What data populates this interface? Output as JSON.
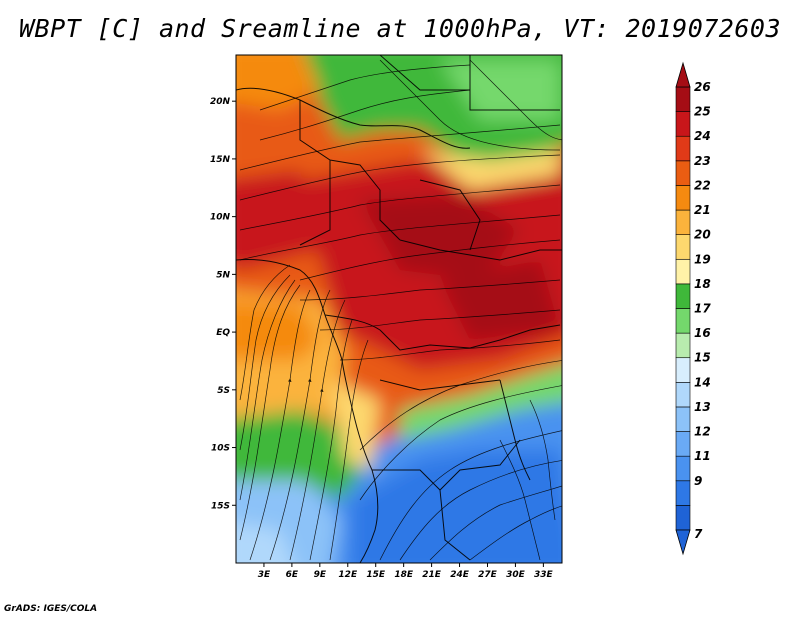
{
  "title": "WBPT [C] and Sreamline at 1000hPa, VT: 2019072603",
  "credit": "GrADS: IGES/COLA",
  "map": {
    "lon_range": [
      0,
      35
    ],
    "lat_range": [
      -20,
      24
    ],
    "lat_ticks": [
      {
        "value": 20,
        "label": "20N"
      },
      {
        "value": 15,
        "label": "15N"
      },
      {
        "value": 10,
        "label": "10N"
      },
      {
        "value": 5,
        "label": "5N"
      },
      {
        "value": 0,
        "label": "EQ"
      },
      {
        "value": -5,
        "label": "5S"
      },
      {
        "value": -10,
        "label": "10S"
      },
      {
        "value": -15,
        "label": "15S"
      }
    ],
    "lon_ticks": [
      {
        "value": 3,
        "label": "3E"
      },
      {
        "value": 6,
        "label": "6E"
      },
      {
        "value": 9,
        "label": "9E"
      },
      {
        "value": 12,
        "label": "12E"
      },
      {
        "value": 15,
        "label": "15E"
      },
      {
        "value": 18,
        "label": "18E"
      },
      {
        "value": 21,
        "label": "21E"
      },
      {
        "value": 24,
        "label": "24E"
      },
      {
        "value": 27,
        "label": "27E"
      },
      {
        "value": 30,
        "label": "30E"
      },
      {
        "value": 33,
        "label": "33E"
      }
    ]
  },
  "colorbar": {
    "levels": [
      {
        "label": "7",
        "color": "#1f63d6"
      },
      {
        "label": "9",
        "color": "#2e78e6"
      },
      {
        "label": "11",
        "color": "#4a92f0"
      },
      {
        "label": "12",
        "color": "#6aaaf5"
      },
      {
        "label": "13",
        "color": "#8cc2f8"
      },
      {
        "label": "14",
        "color": "#b0d8fb"
      },
      {
        "label": "15",
        "color": "#d8eefd"
      },
      {
        "label": "16",
        "color": "#b8ecae"
      },
      {
        "label": "17",
        "color": "#74d86c"
      },
      {
        "label": "18",
        "color": "#3fb83a"
      },
      {
        "label": "19",
        "color": "#fff2a8"
      },
      {
        "label": "20",
        "color": "#fdd86e"
      },
      {
        "label": "21",
        "color": "#fbb33c"
      },
      {
        "label": "22",
        "color": "#f58a10"
      },
      {
        "label": "23",
        "color": "#ea5d12"
      },
      {
        "label": "24",
        "color": "#e03a18"
      },
      {
        "label": "25",
        "color": "#c8161a"
      },
      {
        "label": "26",
        "color": "#a50d15"
      }
    ]
  }
}
